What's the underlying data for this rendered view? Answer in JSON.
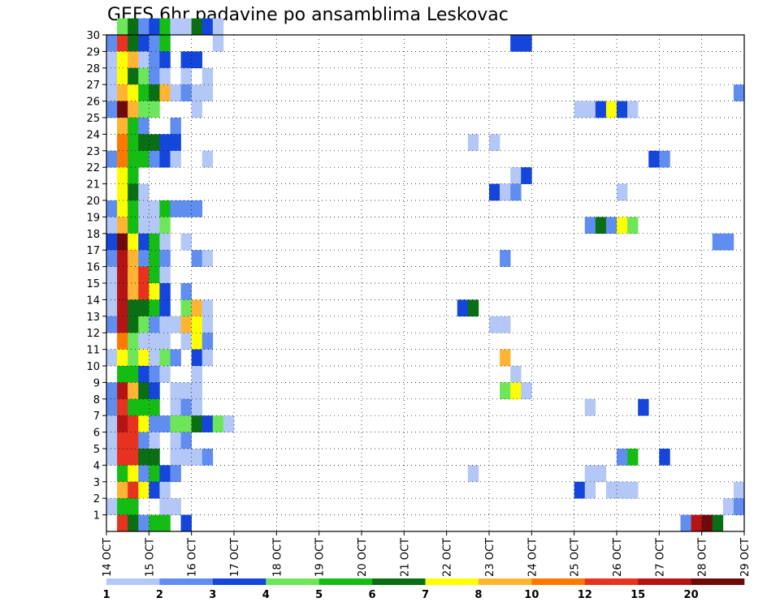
{
  "chart_data": {
    "type": "heatmap",
    "title": "GEFS 6hr padavine po ansamblima Leskovac",
    "x_tick_labels": [
      "14 OCT",
      "15 OCT",
      "16 OCT",
      "17 OCT",
      "18 OCT",
      "19 OCT",
      "20 OCT",
      "21 OCT",
      "22 OCT",
      "23 OCT",
      "24 OCT",
      "25 OCT",
      "26 OCT",
      "27 OCT",
      "28 OCT",
      "29 OCT"
    ],
    "y_tick_labels": [
      "1",
      "2",
      "3",
      "4",
      "5",
      "6",
      "7",
      "8",
      "9",
      "10",
      "11",
      "12",
      "13",
      "14",
      "15",
      "16",
      "17",
      "18",
      "19",
      "20",
      "21",
      "22",
      "23",
      "24",
      "25",
      "26",
      "27",
      "28",
      "29",
      "30"
    ],
    "x_unit": "6-hour step",
    "x_steps_per_day": 4,
    "x_range": [
      0,
      60
    ],
    "y_range": [
      0,
      30
    ],
    "grid": true,
    "color_levels": [
      1,
      2,
      3,
      4,
      5,
      6,
      7,
      8,
      10,
      12,
      15,
      20
    ],
    "colorbar_labels": [
      "1",
      "2",
      "3",
      "4",
      "5",
      "6",
      "7",
      "8",
      "10",
      "12",
      "15",
      "20"
    ],
    "colors": [
      "#b4c8f8",
      "#5f8ef0",
      "#1446dc",
      "#6ee65a",
      "#14bc14",
      "#0a6e14",
      "#ffff00",
      "#ffb432",
      "#ff7800",
      "#e6321e",
      "#b41414",
      "#6e0a0a"
    ],
    "cells": [
      [
        30,
        1,
        4
      ],
      [
        30,
        2,
        6
      ],
      [
        30,
        3,
        2
      ],
      [
        30,
        4,
        3
      ],
      [
        30,
        5,
        5
      ],
      [
        30,
        6,
        1
      ],
      [
        30,
        7,
        1
      ],
      [
        30,
        8,
        6
      ],
      [
        30,
        9,
        3
      ],
      [
        30,
        10,
        1
      ],
      [
        29,
        0,
        2
      ],
      [
        29,
        1,
        10
      ],
      [
        29,
        2,
        6
      ],
      [
        29,
        3,
        3
      ],
      [
        29,
        4,
        2
      ],
      [
        29,
        5,
        5
      ],
      [
        29,
        10,
        1
      ],
      [
        29,
        38,
        3
      ],
      [
        29,
        39,
        3
      ],
      [
        28,
        0,
        1
      ],
      [
        28,
        1,
        7
      ],
      [
        28,
        2,
        8
      ],
      [
        28,
        3,
        1
      ],
      [
        28,
        4,
        2
      ],
      [
        28,
        5,
        3
      ],
      [
        28,
        7,
        3
      ],
      [
        28,
        8,
        3
      ],
      [
        27,
        0,
        1
      ],
      [
        27,
        1,
        7
      ],
      [
        27,
        2,
        6
      ],
      [
        27,
        3,
        4
      ],
      [
        27,
        4,
        2
      ],
      [
        27,
        5,
        1
      ],
      [
        27,
        7,
        1
      ],
      [
        27,
        9,
        1
      ],
      [
        26,
        0,
        1
      ],
      [
        26,
        1,
        8
      ],
      [
        26,
        2,
        7
      ],
      [
        26,
        3,
        5
      ],
      [
        26,
        4,
        6
      ],
      [
        26,
        5,
        8
      ],
      [
        26,
        6,
        1
      ],
      [
        26,
        7,
        2
      ],
      [
        26,
        8,
        1
      ],
      [
        26,
        9,
        1
      ],
      [
        26,
        59,
        2
      ],
      [
        25,
        0,
        2
      ],
      [
        25,
        1,
        12
      ],
      [
        25,
        2,
        8
      ],
      [
        25,
        3,
        4
      ],
      [
        25,
        4,
        4
      ],
      [
        25,
        8,
        1
      ],
      [
        25,
        44,
        1
      ],
      [
        25,
        45,
        1
      ],
      [
        25,
        46,
        3
      ],
      [
        25,
        47,
        7
      ],
      [
        25,
        48,
        3
      ],
      [
        25,
        49,
        1
      ],
      [
        24,
        1,
        8
      ],
      [
        24,
        2,
        5
      ],
      [
        24,
        3,
        2
      ],
      [
        24,
        6,
        2
      ],
      [
        23,
        1,
        9
      ],
      [
        23,
        2,
        5
      ],
      [
        23,
        3,
        6
      ],
      [
        23,
        4,
        6
      ],
      [
        23,
        5,
        3
      ],
      [
        23,
        6,
        3
      ],
      [
        23,
        34,
        1
      ],
      [
        23,
        36,
        1
      ],
      [
        22,
        0,
        2
      ],
      [
        22,
        1,
        9
      ],
      [
        22,
        2,
        5
      ],
      [
        22,
        3,
        5
      ],
      [
        22,
        4,
        2
      ],
      [
        22,
        5,
        3
      ],
      [
        22,
        6,
        1
      ],
      [
        22,
        9,
        1
      ],
      [
        22,
        51,
        3
      ],
      [
        22,
        52,
        2
      ],
      [
        21,
        1,
        7
      ],
      [
        21,
        2,
        5
      ],
      [
        21,
        38,
        1
      ],
      [
        21,
        39,
        3
      ],
      [
        20,
        1,
        7
      ],
      [
        20,
        2,
        6
      ],
      [
        20,
        3,
        1
      ],
      [
        20,
        36,
        3
      ],
      [
        20,
        37,
        1
      ],
      [
        20,
        38,
        2
      ],
      [
        20,
        48,
        1
      ],
      [
        19,
        0,
        2
      ],
      [
        19,
        1,
        7
      ],
      [
        19,
        2,
        5
      ],
      [
        19,
        3,
        1
      ],
      [
        19,
        4,
        1
      ],
      [
        19,
        5,
        5
      ],
      [
        19,
        6,
        2
      ],
      [
        19,
        7,
        2
      ],
      [
        19,
        8,
        2
      ],
      [
        18,
        0,
        1
      ],
      [
        18,
        1,
        8
      ],
      [
        18,
        2,
        5
      ],
      [
        18,
        3,
        1
      ],
      [
        18,
        4,
        1
      ],
      [
        18,
        5,
        4
      ],
      [
        18,
        45,
        2
      ],
      [
        18,
        46,
        6
      ],
      [
        18,
        47,
        2
      ],
      [
        18,
        48,
        7
      ],
      [
        18,
        49,
        4
      ],
      [
        17,
        0,
        3
      ],
      [
        17,
        1,
        12
      ],
      [
        17,
        2,
        7
      ],
      [
        17,
        3,
        3
      ],
      [
        17,
        4,
        5
      ],
      [
        17,
        5,
        1
      ],
      [
        17,
        7,
        1
      ],
      [
        17,
        57,
        2
      ],
      [
        17,
        58,
        2
      ],
      [
        16,
        0,
        2
      ],
      [
        16,
        1,
        11
      ],
      [
        16,
        2,
        8
      ],
      [
        16,
        3,
        2
      ],
      [
        16,
        4,
        5
      ],
      [
        16,
        5,
        2
      ],
      [
        16,
        8,
        2
      ],
      [
        16,
        9,
        1
      ],
      [
        16,
        37,
        2
      ],
      [
        15,
        0,
        1
      ],
      [
        15,
        1,
        11
      ],
      [
        15,
        2,
        8
      ],
      [
        15,
        3,
        10
      ],
      [
        15,
        4,
        5
      ],
      [
        15,
        5,
        1
      ],
      [
        14,
        0,
        1
      ],
      [
        14,
        1,
        11
      ],
      [
        14,
        2,
        8
      ],
      [
        14,
        3,
        10
      ],
      [
        14,
        4,
        7
      ],
      [
        14,
        5,
        3
      ],
      [
        14,
        7,
        2
      ],
      [
        13,
        0,
        1
      ],
      [
        13,
        1,
        11
      ],
      [
        13,
        2,
        6
      ],
      [
        13,
        3,
        6
      ],
      [
        13,
        4,
        5
      ],
      [
        13,
        5,
        3
      ],
      [
        13,
        7,
        4
      ],
      [
        13,
        8,
        8
      ],
      [
        13,
        9,
        1
      ],
      [
        13,
        33,
        3
      ],
      [
        13,
        34,
        6
      ],
      [
        12,
        0,
        2
      ],
      [
        12,
        1,
        11
      ],
      [
        12,
        2,
        6
      ],
      [
        12,
        3,
        4
      ],
      [
        12,
        4,
        2
      ],
      [
        12,
        5,
        1
      ],
      [
        12,
        6,
        1
      ],
      [
        12,
        7,
        8
      ],
      [
        12,
        8,
        7
      ],
      [
        12,
        9,
        1
      ],
      [
        12,
        36,
        1
      ],
      [
        12,
        37,
        1
      ],
      [
        11,
        1,
        9
      ],
      [
        11,
        2,
        4
      ],
      [
        11,
        3,
        1
      ],
      [
        11,
        4,
        1
      ],
      [
        11,
        5,
        1
      ],
      [
        11,
        7,
        1
      ],
      [
        11,
        8,
        7
      ],
      [
        11,
        9,
        2
      ],
      [
        10,
        0,
        1
      ],
      [
        10,
        1,
        7
      ],
      [
        10,
        2,
        4
      ],
      [
        10,
        3,
        7
      ],
      [
        10,
        4,
        1
      ],
      [
        10,
        5,
        4
      ],
      [
        10,
        6,
        2
      ],
      [
        10,
        8,
        3
      ],
      [
        10,
        9,
        1
      ],
      [
        10,
        37,
        8
      ],
      [
        9,
        1,
        5
      ],
      [
        9,
        2,
        5
      ],
      [
        9,
        3,
        3
      ],
      [
        9,
        4,
        2
      ],
      [
        9,
        5,
        1
      ],
      [
        9,
        8,
        1
      ],
      [
        9,
        38,
        1
      ],
      [
        8,
        0,
        2
      ],
      [
        8,
        1,
        11
      ],
      [
        8,
        2,
        8
      ],
      [
        8,
        3,
        6
      ],
      [
        8,
        4,
        3
      ],
      [
        8,
        6,
        1
      ],
      [
        8,
        7,
        1
      ],
      [
        8,
        8,
        1
      ],
      [
        8,
        37,
        4
      ],
      [
        8,
        38,
        7
      ],
      [
        8,
        39,
        1
      ],
      [
        7,
        0,
        2
      ],
      [
        7,
        1,
        10
      ],
      [
        7,
        2,
        5
      ],
      [
        7,
        3,
        5
      ],
      [
        7,
        4,
        5
      ],
      [
        7,
        6,
        1
      ],
      [
        7,
        7,
        2
      ],
      [
        7,
        8,
        1
      ],
      [
        7,
        45,
        1
      ],
      [
        7,
        50,
        3
      ],
      [
        6,
        0,
        1
      ],
      [
        6,
        1,
        11
      ],
      [
        6,
        2,
        10
      ],
      [
        6,
        3,
        7
      ],
      [
        6,
        4,
        2
      ],
      [
        6,
        5,
        2
      ],
      [
        6,
        6,
        4
      ],
      [
        6,
        7,
        4
      ],
      [
        6,
        8,
        6
      ],
      [
        6,
        9,
        3
      ],
      [
        6,
        10,
        4
      ],
      [
        6,
        11,
        1
      ],
      [
        5,
        0,
        1
      ],
      [
        5,
        1,
        10
      ],
      [
        5,
        2,
        10
      ],
      [
        5,
        3,
        2
      ],
      [
        5,
        4,
        1
      ],
      [
        5,
        6,
        1
      ],
      [
        5,
        7,
        2
      ],
      [
        4,
        0,
        1
      ],
      [
        4,
        1,
        10
      ],
      [
        4,
        2,
        10
      ],
      [
        4,
        3,
        6
      ],
      [
        4,
        4,
        6
      ],
      [
        4,
        6,
        1
      ],
      [
        4,
        7,
        1
      ],
      [
        4,
        8,
        1
      ],
      [
        4,
        9,
        2
      ],
      [
        4,
        48,
        2
      ],
      [
        4,
        49,
        5
      ],
      [
        4,
        52,
        3
      ],
      [
        3,
        1,
        5
      ],
      [
        3,
        2,
        7
      ],
      [
        3,
        3,
        2
      ],
      [
        3,
        4,
        5
      ],
      [
        3,
        5,
        3
      ],
      [
        3,
        6,
        2
      ],
      [
        3,
        34,
        1
      ],
      [
        3,
        45,
        1
      ],
      [
        3,
        46,
        1
      ],
      [
        2,
        1,
        8
      ],
      [
        2,
        2,
        10
      ],
      [
        2,
        3,
        7
      ],
      [
        2,
        4,
        3
      ],
      [
        2,
        5,
        1
      ],
      [
        2,
        44,
        3
      ],
      [
        2,
        45,
        1
      ],
      [
        2,
        47,
        1
      ],
      [
        2,
        48,
        1
      ],
      [
        2,
        49,
        1
      ],
      [
        2,
        59,
        1
      ],
      [
        1,
        0,
        1
      ],
      [
        1,
        1,
        5
      ],
      [
        1,
        2,
        5
      ],
      [
        1,
        5,
        1
      ],
      [
        1,
        6,
        1
      ],
      [
        1,
        58,
        1
      ],
      [
        1,
        59,
        2
      ],
      [
        0,
        1,
        10
      ],
      [
        0,
        2,
        6
      ],
      [
        0,
        3,
        2
      ],
      [
        0,
        4,
        5
      ],
      [
        0,
        5,
        5
      ],
      [
        0,
        7,
        3
      ],
      [
        0,
        54,
        2
      ],
      [
        0,
        55,
        11
      ],
      [
        0,
        56,
        12
      ],
      [
        0,
        57,
        6
      ]
    ]
  }
}
